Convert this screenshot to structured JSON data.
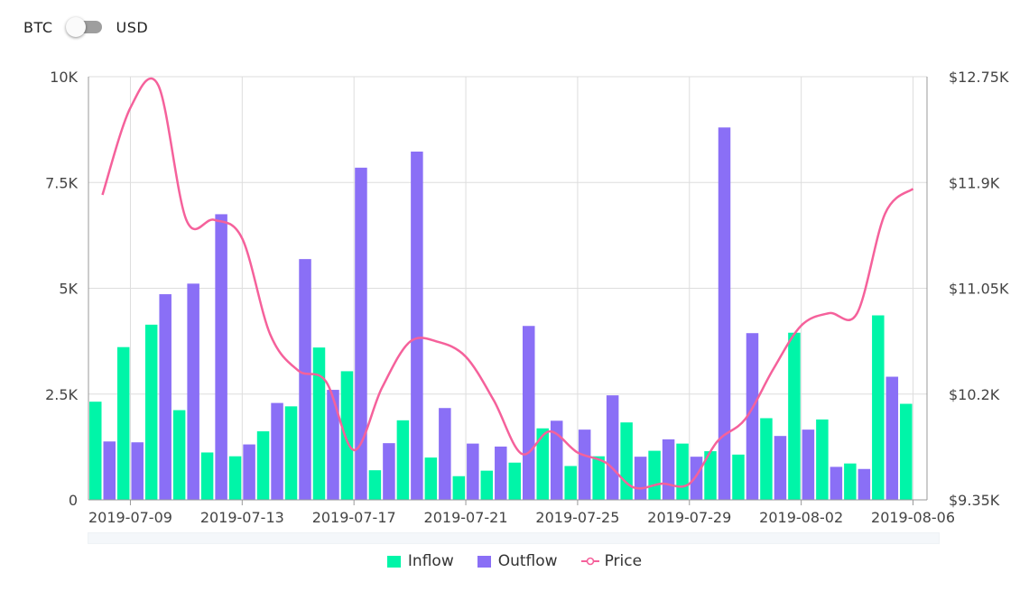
{
  "unit_toggle": {
    "left_label": "BTC",
    "right_label": "USD",
    "selected": "BTC"
  },
  "colors": {
    "inflow": "#00f5a8",
    "outflow": "#8a6ff6",
    "price": "#f5619b",
    "grid": "#dddddd",
    "axis": "#999999"
  },
  "chart_data": {
    "type": "bar",
    "title": "",
    "xlabel": "",
    "ylabel": "",
    "categories": [
      "2019-07-08",
      "2019-07-09",
      "2019-07-10",
      "2019-07-11",
      "2019-07-12",
      "2019-07-13",
      "2019-07-14",
      "2019-07-15",
      "2019-07-16",
      "2019-07-17",
      "2019-07-18",
      "2019-07-19",
      "2019-07-20",
      "2019-07-21",
      "2019-07-22",
      "2019-07-23",
      "2019-07-24",
      "2019-07-25",
      "2019-07-26",
      "2019-07-27",
      "2019-07-28",
      "2019-07-29",
      "2019-07-30",
      "2019-07-31",
      "2019-08-01",
      "2019-08-02",
      "2019-08-03",
      "2019-08-04",
      "2019-08-05",
      "2019-08-06"
    ],
    "x_tick_labels": [
      "2019-07-09",
      "2019-07-13",
      "2019-07-17",
      "2019-07-21",
      "2019-07-25",
      "2019-07-29",
      "2019-08-02",
      "2019-08-06"
    ],
    "series": [
      {
        "name": "Inflow",
        "axis": "left",
        "type": "bar",
        "values": [
          2320,
          3610,
          4140,
          2120,
          1120,
          1030,
          1620,
          2210,
          3600,
          3040,
          700,
          1880,
          1000,
          560,
          690,
          880,
          1690,
          800,
          1030,
          1830,
          1160,
          1330,
          1150,
          1070,
          1930,
          3950,
          1900,
          860,
          4360,
          2270
        ]
      },
      {
        "name": "Outflow",
        "axis": "left",
        "type": "bar",
        "values": [
          1380,
          1360,
          4860,
          5110,
          6750,
          1310,
          2290,
          5690,
          2600,
          7850,
          1340,
          8230,
          2170,
          1330,
          1260,
          4110,
          1870,
          1660,
          2470,
          1020,
          1430,
          1020,
          8800,
          3940,
          1510,
          1660,
          780,
          730,
          2910,
          null
        ]
      },
      {
        "name": "Price",
        "axis": "right",
        "type": "line",
        "values": [
          11800,
          12500,
          12680,
          11600,
          11600,
          11450,
          10680,
          10390,
          10300,
          9750,
          10250,
          10620,
          10620,
          10500,
          10150,
          9720,
          9900,
          9730,
          9650,
          9450,
          9480,
          9480,
          9820,
          10000,
          10400,
          10750,
          10850,
          10850,
          11650,
          11850
        ]
      }
    ],
    "y_left": {
      "min": 0,
      "max": 10000,
      "ticks": [
        0,
        2500,
        5000,
        7500,
        10000
      ],
      "tick_labels": [
        "0",
        "2.5K",
        "5K",
        "7.5K",
        "10K"
      ]
    },
    "y_right": {
      "min": 9350,
      "max": 12750,
      "ticks": [
        9350,
        10200,
        11050,
        11900,
        12750
      ],
      "tick_labels": [
        "$9.35K",
        "$10.2K",
        "$11.05K",
        "$11.9K",
        "$12.75K"
      ]
    },
    "grid": true,
    "legend_position": "bottom-center"
  }
}
